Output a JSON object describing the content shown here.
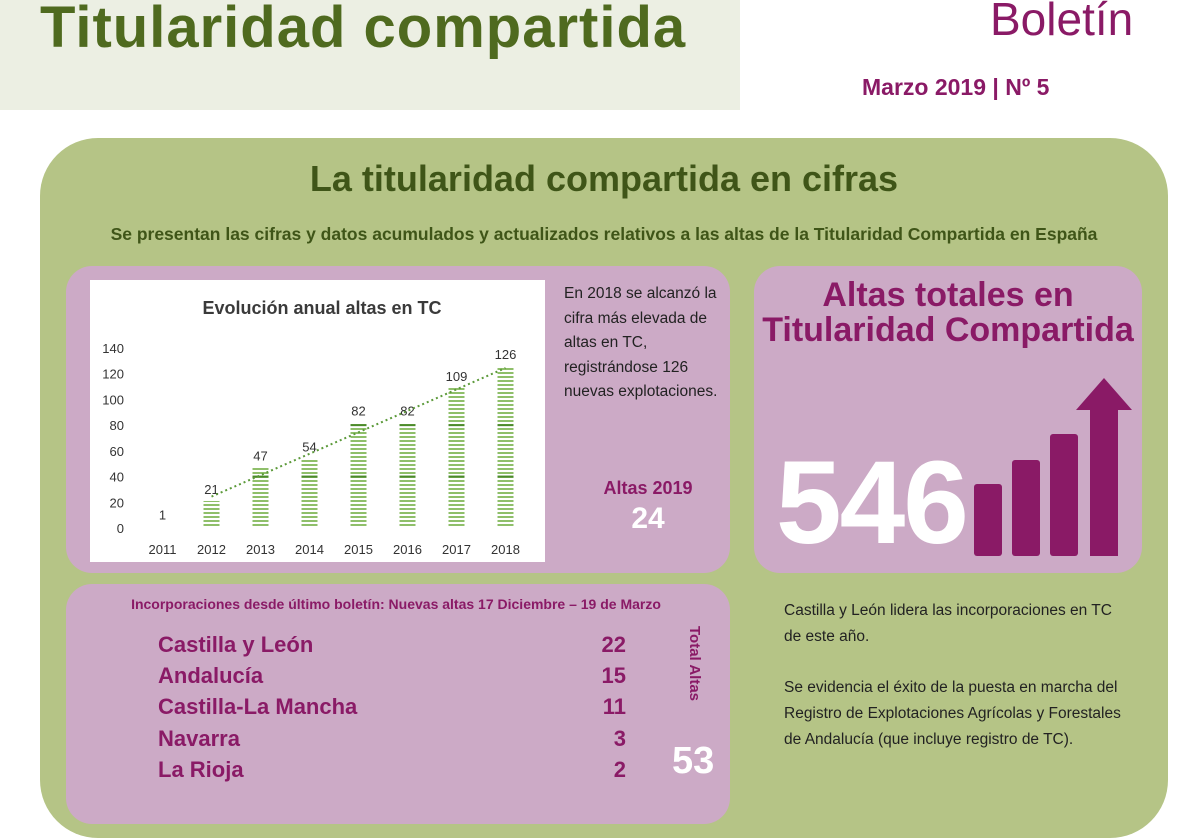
{
  "header": {
    "title": "Titularidad compartida",
    "bulletin": "Boletín",
    "issue": "Marzo 2019 | Nº 5"
  },
  "section": {
    "title": "La titularidad compartida en cifras",
    "subtitle": "Se presentan las cifras y datos acumulados y actualizados relativos a las altas de la Titularidad Compartida en España"
  },
  "chart_data": {
    "type": "bar",
    "title": "Evolución anual  altas en TC",
    "categories": [
      "2011",
      "2012",
      "2013",
      "2014",
      "2015",
      "2016",
      "2017",
      "2018"
    ],
    "values": [
      1,
      21,
      47,
      54,
      82,
      82,
      109,
      126
    ],
    "y_ticks": [
      "0",
      "20",
      "40",
      "60",
      "80",
      "100",
      "120",
      "140"
    ],
    "ylim": [
      0,
      140
    ],
    "trendline": "linear",
    "data_labels": true,
    "bar_color": "#8fbf6a"
  },
  "chart_note": "En 2018 se alcanzó la cifra más elevada de altas en TC, registrándose 126 nuevas explotaciones.",
  "altas_2019": {
    "label": "Altas 2019",
    "value": "24"
  },
  "totals": {
    "title_line1": "Altas totales en",
    "title_line2": "Titularidad Compartida",
    "value": "546"
  },
  "incorporations": {
    "header": "Incorporaciones desde último boletín: Nuevas altas 17 Diciembre – 19 de Marzo",
    "rows": [
      {
        "region": "Castilla y León",
        "count": "22"
      },
      {
        "region": "Andalucía",
        "count": "15"
      },
      {
        "region": "Castilla-La Mancha",
        "count": "11"
      },
      {
        "region": "Navarra",
        "count": "3"
      },
      {
        "region": "La Rioja",
        "count": "2"
      }
    ],
    "total_label": "Total Altas",
    "total_value": "53"
  },
  "notes": {
    "first": "Castilla y León lidera las incorporaciones en TC  de este año.",
    "second": "Se evidencia el éxito de la puesta en marcha del Registro de Explotaciones Agrícolas y Forestales de Andalucía (que incluye registro de TC)."
  },
  "colors": {
    "brand_green": "#4f6a1f",
    "panel_green": "#b5c486",
    "accent_purple": "#8a1a66",
    "box_purple": "#ccaac6"
  }
}
